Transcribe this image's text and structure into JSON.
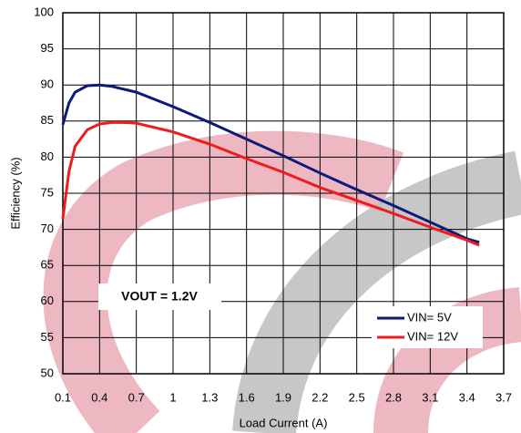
{
  "chart_data": {
    "type": "line",
    "x_label": "Load Current (A)",
    "y_label": "Efficiency (%)",
    "annotation": "VOUT = 1.2V",
    "x": [
      0.1,
      0.15,
      0.2,
      0.3,
      0.4,
      0.5,
      0.6,
      0.7,
      1.0,
      1.3,
      1.6,
      1.9,
      2.2,
      2.5,
      2.8,
      3.1,
      3.4,
      3.5
    ],
    "series": [
      {
        "name": "VIN= 5V",
        "color": "#0c1a7a",
        "values": [
          84.5,
          87.5,
          89.0,
          89.9,
          90.0,
          89.8,
          89.4,
          89.0,
          87.0,
          84.8,
          82.5,
          80.2,
          77.8,
          75.5,
          73.3,
          71.0,
          68.7,
          68.2
        ]
      },
      {
        "name": "VIN= 12V",
        "color": "#ee1c1c",
        "values": [
          71.5,
          78.0,
          81.5,
          83.8,
          84.6,
          84.8,
          84.8,
          84.7,
          83.5,
          81.8,
          79.8,
          77.9,
          75.8,
          74.0,
          72.2,
          70.3,
          68.5,
          67.8
        ]
      }
    ],
    "xlim": [
      0.1,
      3.7
    ],
    "xticks": [
      0.1,
      0.4,
      0.7,
      1,
      1.3,
      1.6,
      1.9,
      2.2,
      2.5,
      2.8,
      3.1,
      3.4,
      3.7
    ],
    "ylim": [
      50,
      100
    ],
    "yticks": [
      50,
      55,
      60,
      65,
      70,
      75,
      80,
      85,
      90,
      95,
      100
    ],
    "grid": true,
    "legend": "lower right"
  }
}
